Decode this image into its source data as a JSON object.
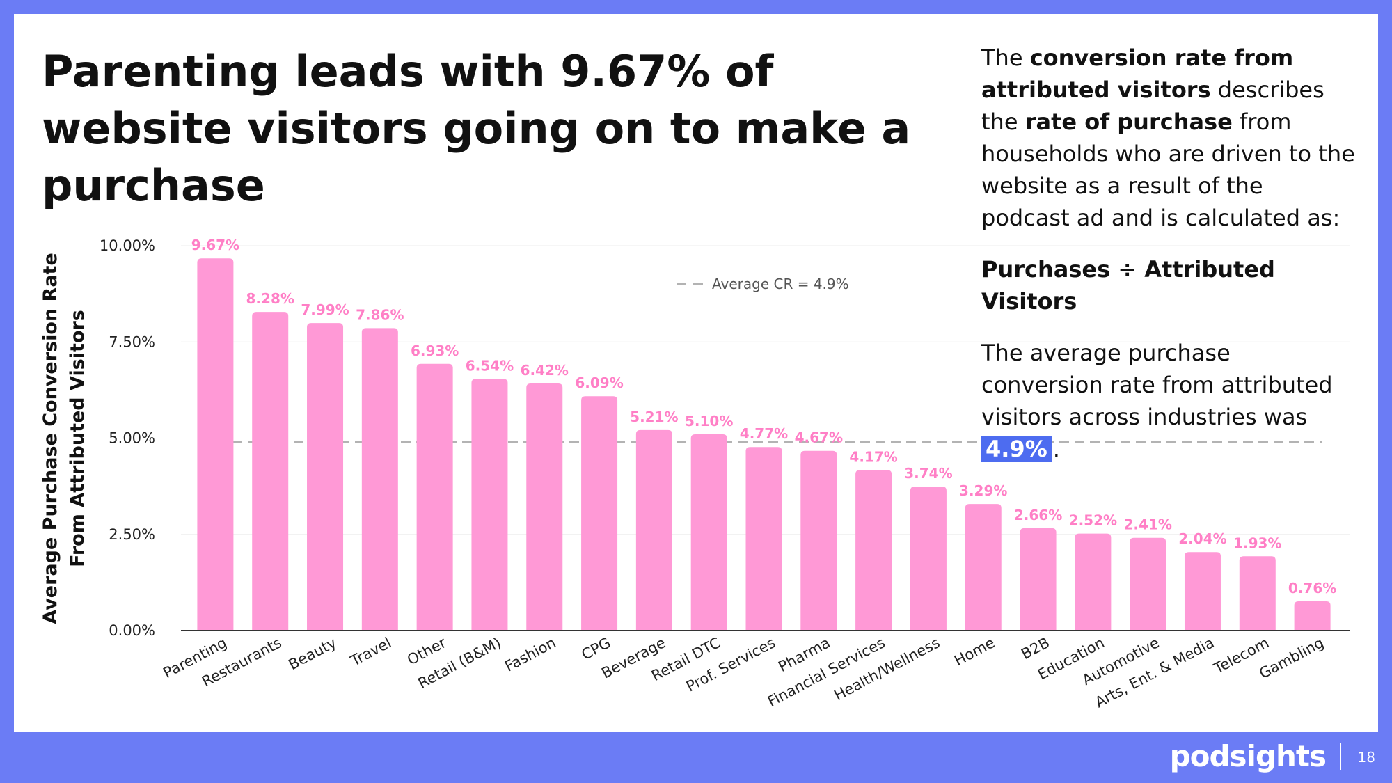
{
  "slide": {
    "title": "Parenting leads with 9.67% of website visitors going on to make a purchase",
    "page_number": "18",
    "logo": "podsights"
  },
  "sidebar": {
    "p1_a": "The ",
    "p1_b": "conversion rate from attributed visitors",
    "p1_c": " describes the ",
    "p1_d": "rate of purchase",
    "p1_e": " from households who are driven to the website as a result of the podcast ad and is calculated as:",
    "formula": "Purchases ÷ Attributed Visitors",
    "p2_a": "The average purchase conversion rate from attributed visitors across industries was ",
    "p2_highlight": "4.9%",
    "p2_end": "."
  },
  "colors": {
    "bar": "#ff99d6",
    "bar_label": "#ff7fc6",
    "average_line": "#b3b3b3",
    "accent": "#4d6cf0",
    "background": "#6b7cf5"
  },
  "chart_data": {
    "type": "bar",
    "ylabel": "Average Purchase Conversion Rate From Attributed Visitors",
    "xlabel": "",
    "ylim": [
      0,
      10
    ],
    "yticks": [
      "0.00%",
      "2.50%",
      "5.00%",
      "7.50%",
      "10.00%"
    ],
    "grid": true,
    "categories": [
      "Parenting",
      "Restaurants",
      "Beauty",
      "Travel",
      "Other",
      "Retail (B&M)",
      "Fashion",
      "CPG",
      "Beverage",
      "Retail DTC",
      "Prof. Services",
      "Pharma",
      "Financial Services",
      "Health/Wellness",
      "Home",
      "B2B",
      "Education",
      "Automotive",
      "Arts, Ent. & Media",
      "Telecom",
      "Gambling"
    ],
    "values": [
      9.67,
      8.28,
      7.99,
      7.86,
      6.93,
      6.54,
      6.42,
      6.09,
      5.21,
      5.1,
      4.77,
      4.67,
      4.17,
      3.74,
      3.29,
      2.66,
      2.52,
      2.41,
      2.04,
      1.93,
      0.76
    ],
    "data_labels": [
      "9.67%",
      "8.28%",
      "7.99%",
      "7.86%",
      "6.93%",
      "6.54%",
      "6.42%",
      "6.09%",
      "5.21%",
      "5.10%",
      "4.77%",
      "4.67%",
      "4.17%",
      "3.74%",
      "3.29%",
      "2.66%",
      "2.52%",
      "2.41%",
      "2.04%",
      "1.93%",
      "0.76%"
    ],
    "average_line": {
      "value": 4.9,
      "label": "Average CR = 4.9%"
    }
  }
}
